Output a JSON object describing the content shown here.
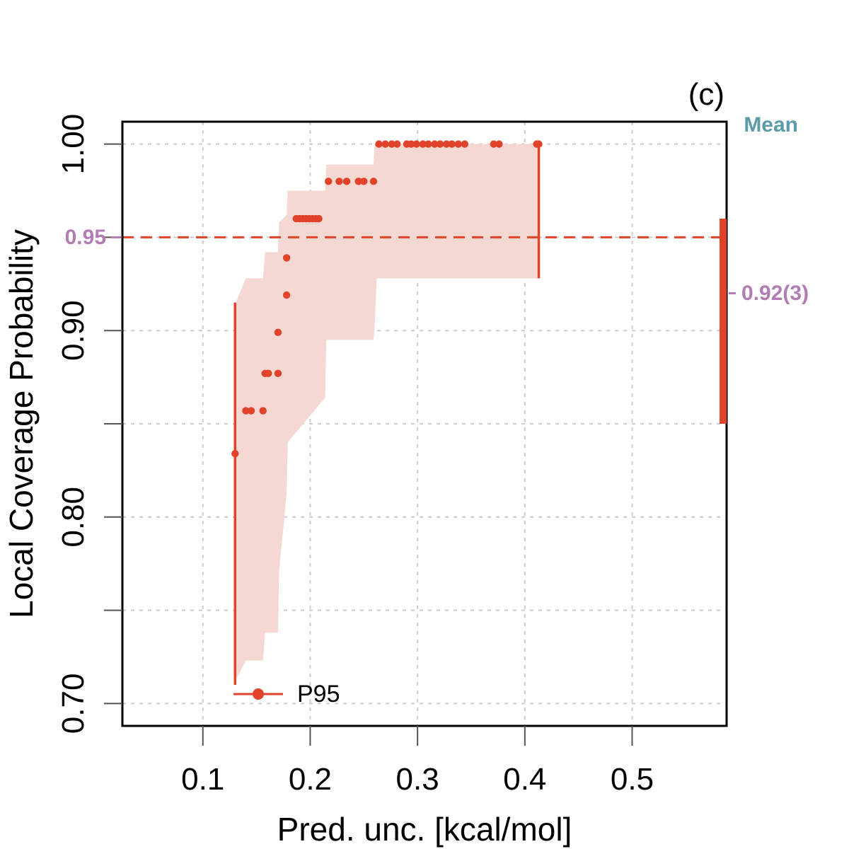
{
  "colors": {
    "series": "#e0422a",
    "band": "#f6d8d3",
    "annotation": "#b27db3",
    "mean_label": "#5a9ca8",
    "grid": "#cccccc"
  },
  "chart_data": {
    "type": "scatter",
    "panel_label": "(c)",
    "xlabel": "Pred. unc. [kcal/mol]",
    "ylabel": "Local Coverage Probability",
    "xlim": [
      0.025,
      0.588
    ],
    "ylim": [
      0.688,
      1.012
    ],
    "x_ticks": [
      0.1,
      0.2,
      0.3,
      0.4,
      0.5
    ],
    "x_tick_labels": [
      "0.1",
      "0.2",
      "0.3",
      "0.4",
      "0.5"
    ],
    "y_ticks": [
      0.7,
      0.75,
      0.8,
      0.85,
      0.9,
      0.95,
      1.0
    ],
    "y_tick_labels": [
      "0.70",
      "",
      "0.80",
      "",
      "0.90",
      "",
      "1.00"
    ],
    "target_level": 0.95,
    "target_label": "0.95",
    "mean": {
      "label": "Mean",
      "value": 0.92,
      "value_label": "0.92(3)",
      "low": 0.85,
      "high": 0.96
    },
    "legend": {
      "entries": [
        {
          "name": "P95"
        }
      ],
      "position": "bottom-left"
    },
    "series": [
      {
        "name": "P95",
        "points": [
          [
            0.13,
            0.834
          ],
          [
            0.14,
            0.857
          ],
          [
            0.145,
            0.857
          ],
          [
            0.156,
            0.857
          ],
          [
            0.158,
            0.877
          ],
          [
            0.161,
            0.877
          ],
          [
            0.17,
            0.877
          ],
          [
            0.17,
            0.899
          ],
          [
            0.178,
            0.919
          ],
          [
            0.178,
            0.939
          ],
          [
            0.187,
            0.96
          ],
          [
            0.19,
            0.96
          ],
          [
            0.193,
            0.96
          ],
          [
            0.196,
            0.96
          ],
          [
            0.199,
            0.96
          ],
          [
            0.202,
            0.96
          ],
          [
            0.205,
            0.96
          ],
          [
            0.208,
            0.96
          ],
          [
            0.217,
            0.98
          ],
          [
            0.227,
            0.98
          ],
          [
            0.234,
            0.98
          ],
          [
            0.245,
            0.98
          ],
          [
            0.25,
            0.98
          ],
          [
            0.259,
            0.98
          ],
          [
            0.264,
            1.0
          ],
          [
            0.27,
            1.0
          ],
          [
            0.276,
            1.0
          ],
          [
            0.281,
            1.0
          ],
          [
            0.29,
            1.0
          ],
          [
            0.294,
            1.0
          ],
          [
            0.299,
            1.0
          ],
          [
            0.305,
            1.0
          ],
          [
            0.31,
            1.0
          ],
          [
            0.316,
            1.0
          ],
          [
            0.321,
            1.0
          ],
          [
            0.327,
            1.0
          ],
          [
            0.332,
            1.0
          ],
          [
            0.338,
            1.0
          ],
          [
            0.344,
            1.0
          ],
          [
            0.371,
            1.0
          ],
          [
            0.376,
            1.0
          ],
          [
            0.411,
            1.0
          ],
          [
            0.413,
            1.0
          ]
        ],
        "error_bars": [
          {
            "x": 0.13,
            "low": 0.71,
            "high": 0.915
          },
          {
            "x": 0.413,
            "low": 0.928,
            "high": 1.0
          }
        ],
        "band": {
          "x": [
            0.13,
            0.14,
            0.156,
            0.158,
            0.17,
            0.171,
            0.178,
            0.179,
            0.214,
            0.215,
            0.259,
            0.26,
            0.262,
            0.264,
            0.413
          ],
          "lower": [
            0.712,
            0.723,
            0.723,
            0.738,
            0.738,
            0.771,
            0.812,
            0.84,
            0.864,
            0.895,
            0.895,
            0.902,
            0.928,
            0.928,
            0.928
          ],
          "upper": [
            0.914,
            0.928,
            0.928,
            0.942,
            0.942,
            0.958,
            0.962,
            0.975,
            0.975,
            0.989,
            0.989,
            1.0,
            1.0,
            1.0,
            1.0
          ]
        }
      }
    ]
  }
}
